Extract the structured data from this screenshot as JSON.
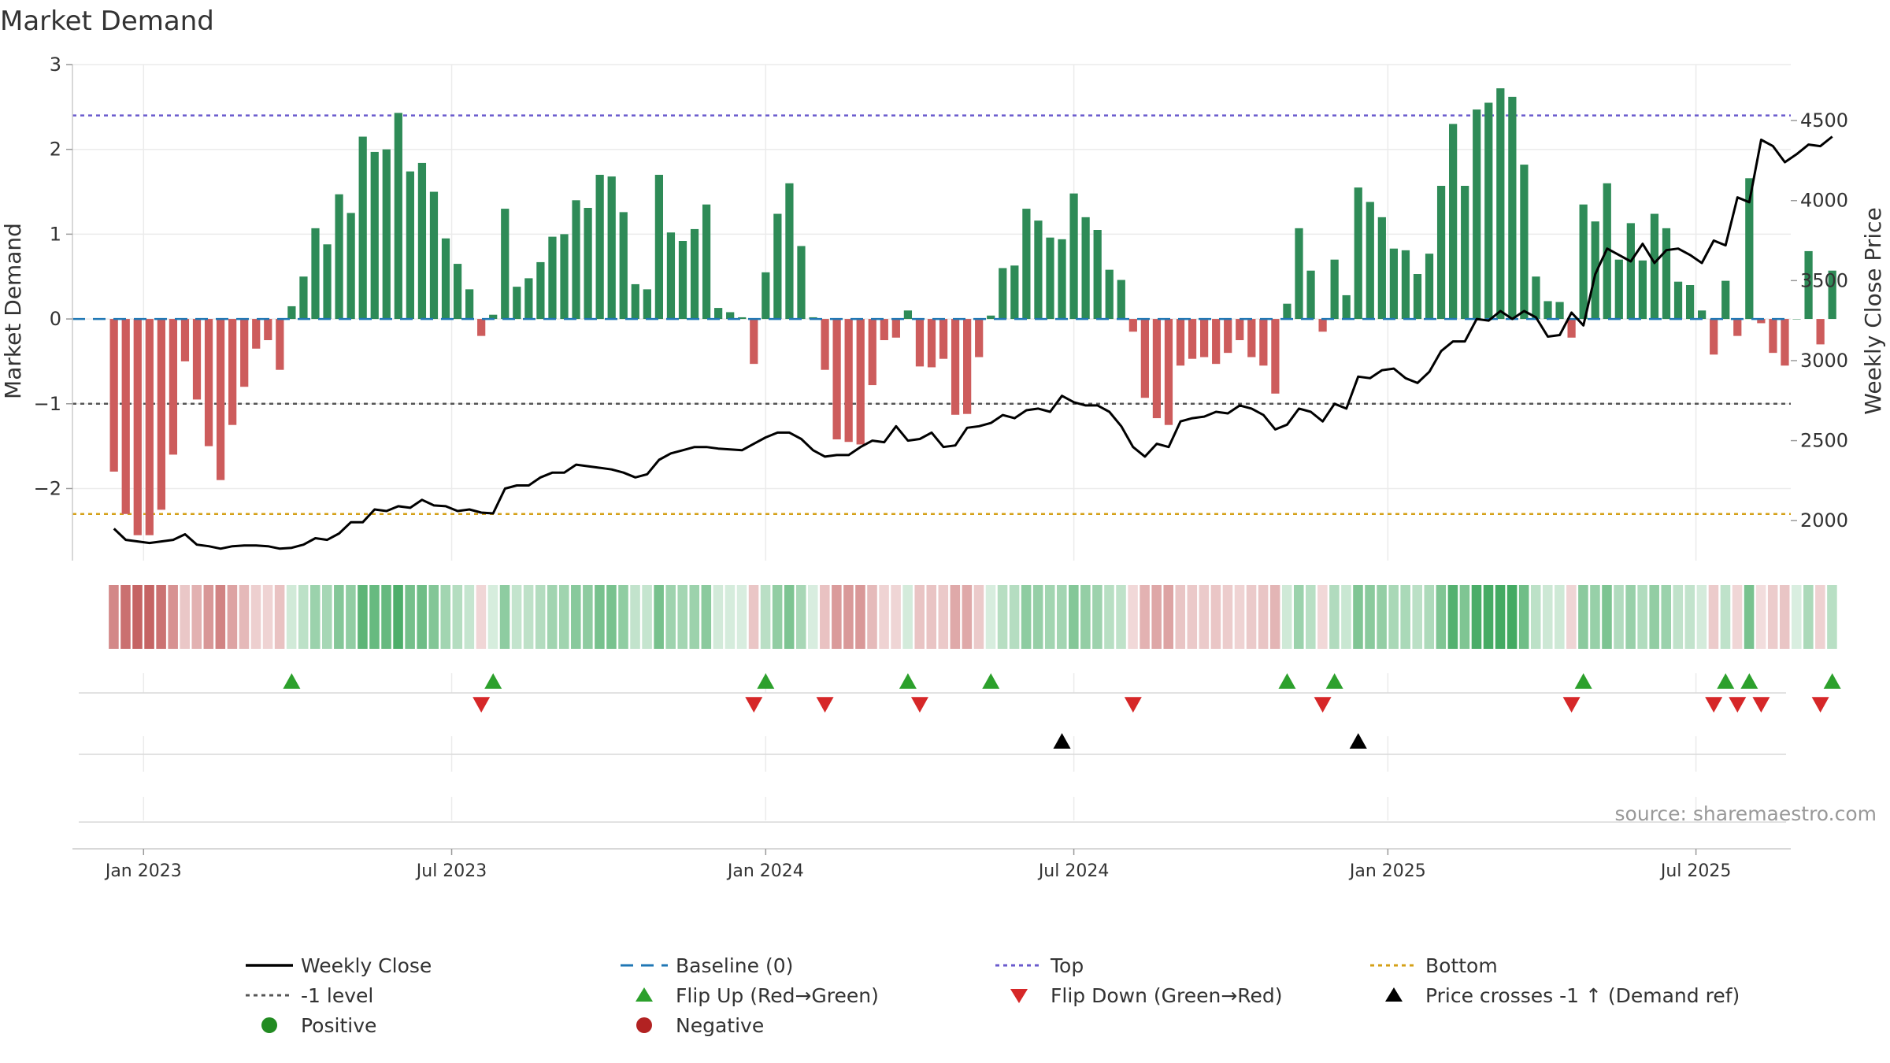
{
  "chart_data": {
    "type": "bar",
    "title": "Market Demand",
    "ylabel_left": "Market Demand",
    "ylabel_right": "Weekly Close Price",
    "source": "source: sharemaestro.com",
    "ylim_left": [
      -2.85,
      3.0
    ],
    "ylim_right": [
      1750,
      4850
    ],
    "yticks_left": [
      {
        "v": 3,
        "label": "3"
      },
      {
        "v": 2,
        "label": "2"
      },
      {
        "v": 1,
        "label": "1"
      },
      {
        "v": 0,
        "label": "0"
      },
      {
        "v": -1,
        "label": "−1"
      },
      {
        "v": -2,
        "label": "−2"
      }
    ],
    "yticks_right": [
      {
        "v": 4500,
        "label": "4500"
      },
      {
        "v": 4000,
        "label": "4000"
      },
      {
        "v": 3500,
        "label": "3500"
      },
      {
        "v": 3000,
        "label": "3000"
      },
      {
        "v": 2500,
        "label": "2500"
      },
      {
        "v": 2000,
        "label": "2000"
      }
    ],
    "x_week_range": [
      -3.5,
      141.5
    ],
    "xticks": [
      {
        "week": 2.5,
        "label": "Jan 2023"
      },
      {
        "week": 28.5,
        "label": "Jul 2023"
      },
      {
        "week": 55,
        "label": "Jan 2024"
      },
      {
        "week": 81,
        "label": "Jul 2024"
      },
      {
        "week": 107.5,
        "label": "Jan 2025"
      },
      {
        "week": 133.5,
        "label": "Jul 2025"
      }
    ],
    "levels": {
      "top": 2.4,
      "bottom": -2.3,
      "minus_one": -1.0,
      "baseline": 0
    },
    "colors": {
      "positive": "#2e8b57",
      "negative": "#cd5c5c",
      "price": "#000000",
      "baseline": "#1f77b4",
      "top": "#6a5acd",
      "bottom": "#d4a017",
      "minus_one": "#555555",
      "flip_up": "#2ca02c",
      "flip_down": "#d62728",
      "cross": "#000000",
      "legend_positive": "#228b22",
      "legend_negative": "#b22222"
    },
    "demand": [
      -1.8,
      -2.3,
      -2.55,
      -2.55,
      -2.25,
      -1.6,
      -0.5,
      -0.95,
      -1.5,
      -1.9,
      -1.25,
      -0.8,
      -0.35,
      -0.25,
      -0.6,
      0.15,
      0.5,
      1.07,
      0.88,
      1.47,
      1.25,
      2.15,
      1.97,
      2.0,
      2.43,
      1.74,
      1.84,
      1.5,
      0.95,
      0.65,
      0.35,
      -0.2,
      0.05,
      1.3,
      0.38,
      0.48,
      0.67,
      0.97,
      1.0,
      1.4,
      1.31,
      1.7,
      1.68,
      1.26,
      0.41,
      0.35,
      1.7,
      1.02,
      0.92,
      1.06,
      1.35,
      0.13,
      0.08,
      0.02,
      -0.53,
      0.55,
      1.24,
      1.6,
      0.86,
      0.02,
      -0.6,
      -1.42,
      -1.45,
      -1.48,
      -0.78,
      -0.25,
      -0.22,
      0.1,
      -0.56,
      -0.57,
      -0.47,
      -1.13,
      -1.12,
      -0.45,
      0.04,
      0.6,
      0.63,
      1.3,
      1.16,
      0.96,
      0.94,
      1.48,
      1.2,
      1.05,
      0.58,
      0.46,
      -0.15,
      -0.93,
      -1.17,
      -1.25,
      -0.55,
      -0.47,
      -0.45,
      -0.53,
      -0.4,
      -0.25,
      -0.45,
      -0.55,
      -0.88,
      0.18,
      1.07,
      0.57,
      -0.15,
      0.7,
      0.28,
      1.55,
      1.38,
      1.2,
      0.83,
      0.81,
      0.53,
      0.77,
      1.57,
      2.3,
      1.57,
      2.47,
      2.55,
      2.72,
      2.62,
      1.82,
      0.5,
      0.21,
      0.2,
      -0.22,
      1.35,
      1.15,
      1.6,
      0.7,
      1.13,
      0.69,
      1.24,
      1.07,
      0.44,
      0.4,
      0.1,
      -0.42,
      0.45,
      -0.2,
      1.66,
      -0.05,
      -0.4,
      -0.55,
      0.0,
      0.8,
      -0.3,
      0.57
    ],
    "price": [
      1950,
      1880,
      1870,
      1860,
      1870,
      1880,
      1915,
      1850,
      1840,
      1825,
      1840,
      1845,
      1845,
      1840,
      1825,
      1830,
      1850,
      1890,
      1880,
      1920,
      1990,
      1990,
      2070,
      2060,
      2090,
      2080,
      2130,
      2095,
      2090,
      2060,
      2070,
      2050,
      2045,
      2200,
      2220,
      2220,
      2270,
      2300,
      2300,
      2350,
      2340,
      2330,
      2320,
      2300,
      2270,
      2290,
      2380,
      2420,
      2440,
      2460,
      2460,
      2450,
      2445,
      2440,
      2480,
      2520,
      2550,
      2550,
      2510,
      2440,
      2400,
      2410,
      2410,
      2460,
      2500,
      2490,
      2590,
      2500,
      2510,
      2550,
      2460,
      2470,
      2580,
      2590,
      2610,
      2660,
      2640,
      2690,
      2700,
      2680,
      2780,
      2740,
      2720,
      2720,
      2680,
      2590,
      2460,
      2400,
      2480,
      2460,
      2620,
      2640,
      2650,
      2680,
      2670,
      2720,
      2700,
      2660,
      2570,
      2600,
      2700,
      2680,
      2620,
      2730,
      2700,
      2900,
      2890,
      2940,
      2950,
      2890,
      2860,
      2930,
      3060,
      3120,
      3120,
      3260,
      3250,
      3310,
      3260,
      3310,
      3270,
      3150,
      3160,
      3300,
      3220,
      3540,
      3700,
      3660,
      3620,
      3730,
      3610,
      3690,
      3700,
      3660,
      3610,
      3750,
      3720,
      4020,
      3990,
      4380,
      4340,
      4240,
      4290,
      4350,
      4340,
      4400
    ]
  },
  "legend": [
    {
      "label": "Weekly Close",
      "symbol": "line",
      "color": "#000000"
    },
    {
      "label": "Baseline (0)",
      "symbol": "dash",
      "color": "#1f77b4"
    },
    {
      "label": "Top",
      "symbol": "dot",
      "color": "#6a5acd"
    },
    {
      "label": "Bottom",
      "symbol": "dot",
      "color": "#d4a017"
    },
    {
      "label": "-1 level",
      "symbol": "dot",
      "color": "#555555"
    },
    {
      "label": "Flip Up (Red→Green)",
      "symbol": "tri-up",
      "color": "#2ca02c"
    },
    {
      "label": "Flip Down (Green→Red)",
      "symbol": "tri-down",
      "color": "#d62728"
    },
    {
      "label": "Price crosses -1 ↑ (Demand ref)",
      "symbol": "tri-up",
      "color": "#000000"
    },
    {
      "label": "Positive",
      "symbol": "circle",
      "color": "#228b22"
    },
    {
      "label": "Negative",
      "symbol": "circle",
      "color": "#b22222"
    }
  ]
}
